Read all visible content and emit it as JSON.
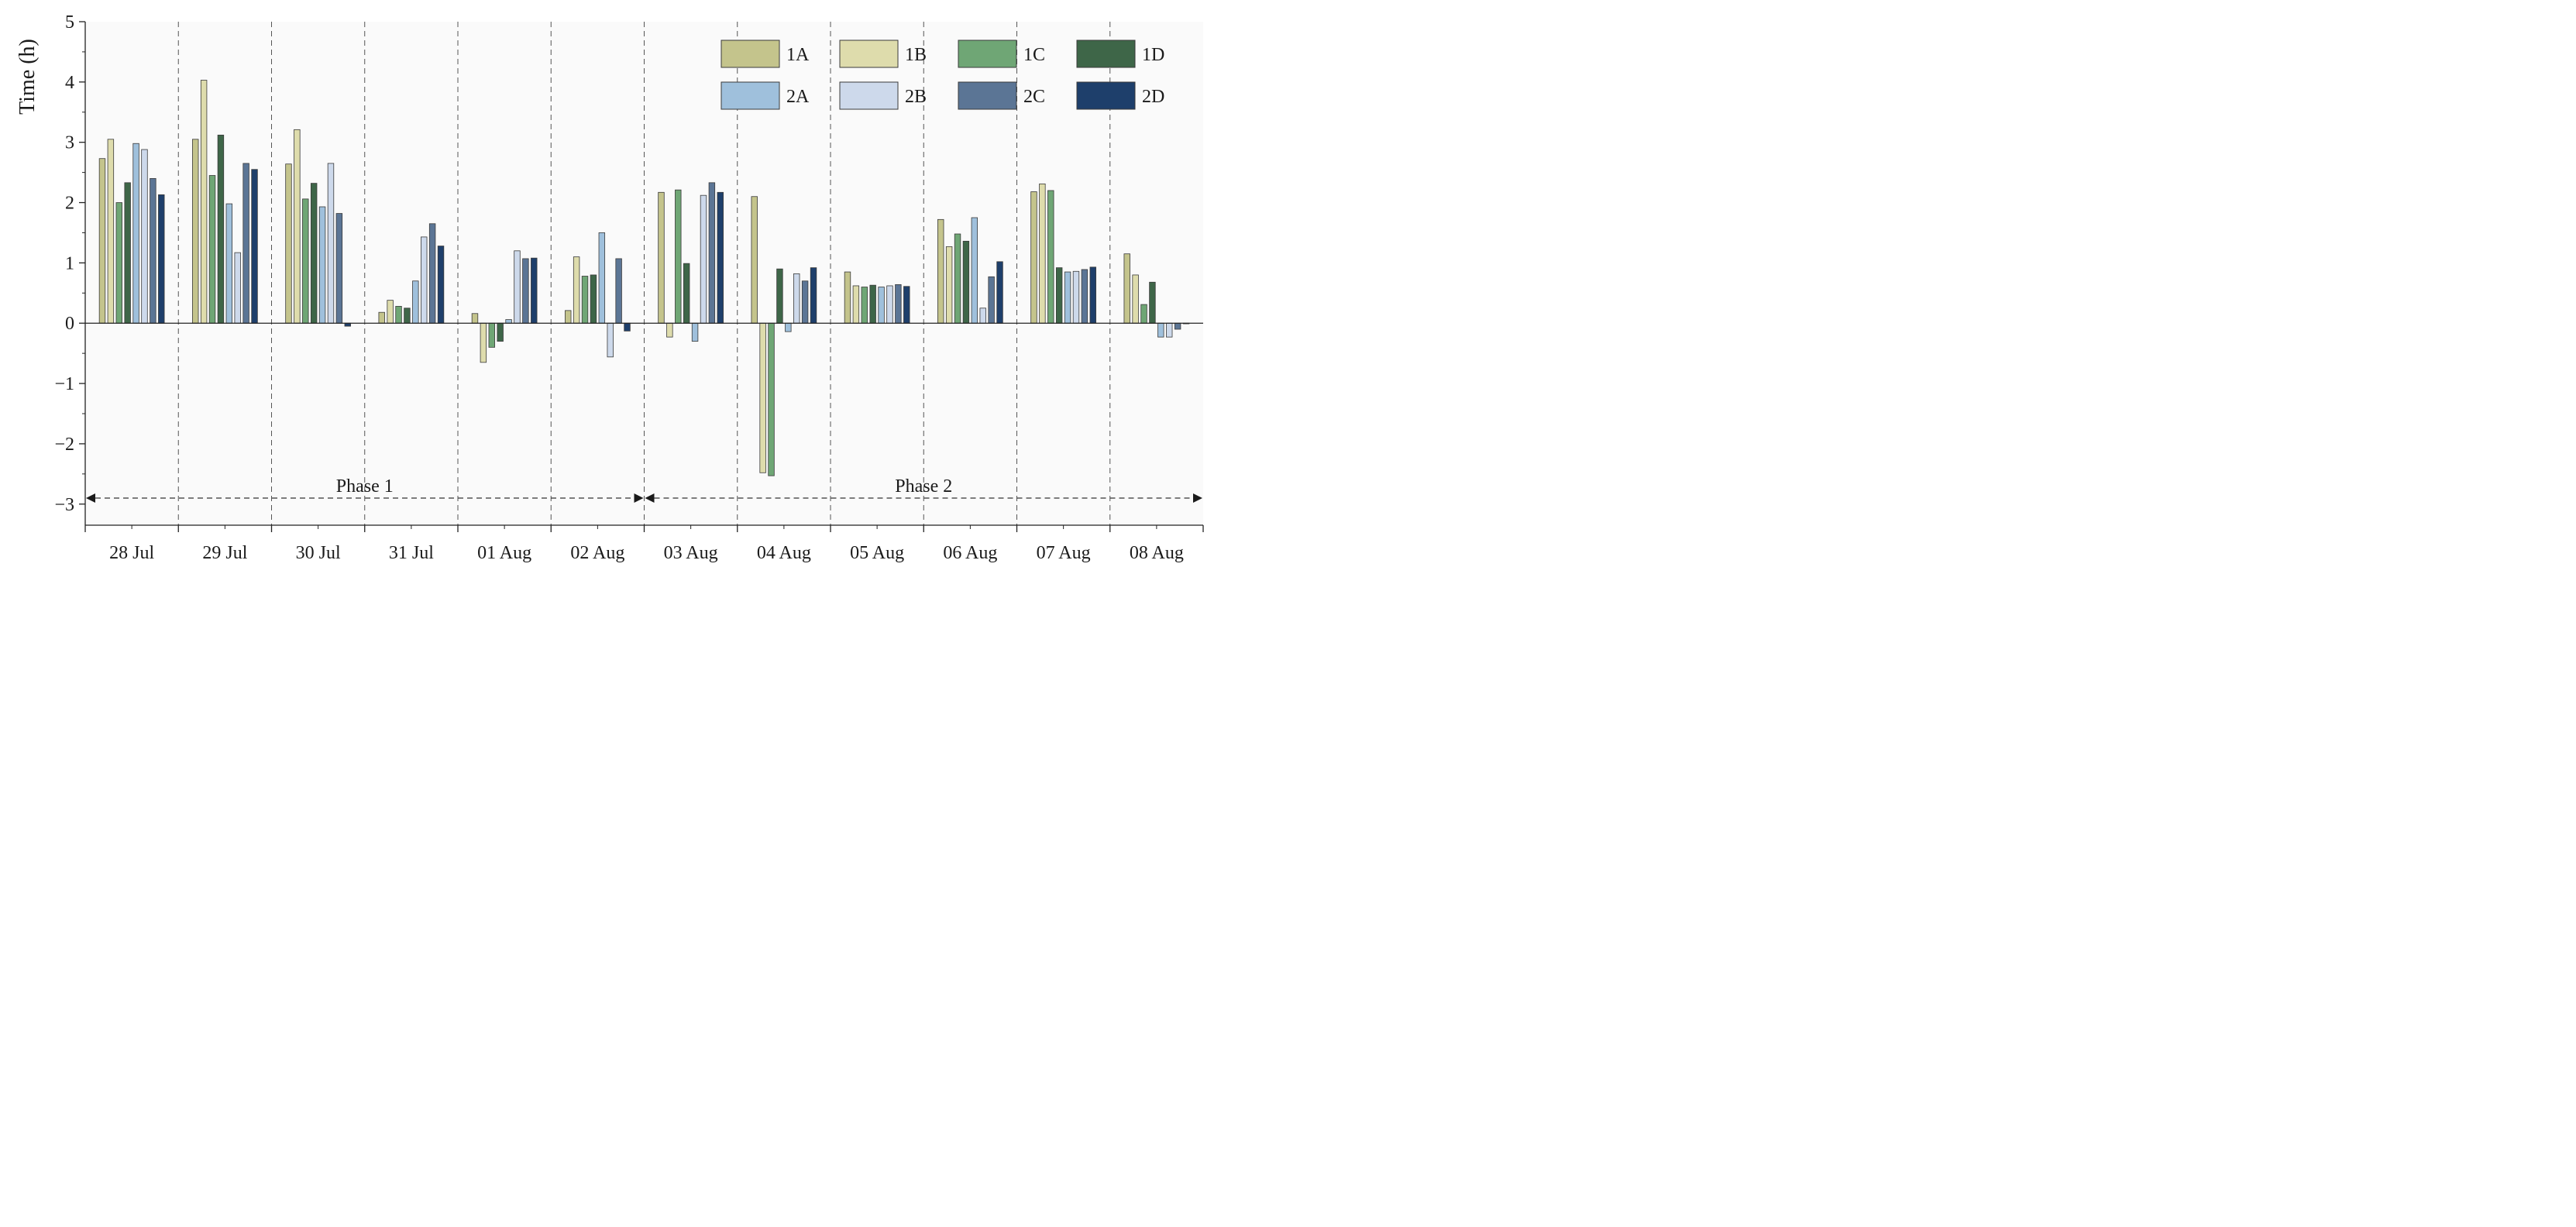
{
  "chart_data": {
    "type": "bar",
    "title": "",
    "xlabel": "",
    "ylabel": "Time (h)",
    "ylim": [
      -3.35,
      5
    ],
    "yticks": [
      -3,
      -2,
      -1,
      0,
      1,
      2,
      3,
      4,
      5
    ],
    "ytick_labels": [
      "−3",
      "−2",
      "−1",
      "0",
      "1",
      "2",
      "3",
      "4",
      "5"
    ],
    "grid": false,
    "legend_position": "top-right",
    "categories": [
      "28 Jul",
      "29 Jul",
      "30 Jul",
      "31 Jul",
      "01 Aug",
      "02 Aug",
      "03 Aug",
      "04 Aug",
      "05 Aug",
      "06 Aug",
      "07 Aug",
      "08 Aug"
    ],
    "series": [
      {
        "name": "1A",
        "color": "#c4c48c",
        "values": [
          2.73,
          3.05,
          2.64,
          0.18,
          0.16,
          0.21,
          2.17,
          2.1,
          0.85,
          1.72,
          2.18,
          1.15
        ]
      },
      {
        "name": "1B",
        "color": "#dedcac",
        "values": [
          3.05,
          4.03,
          3.21,
          0.38,
          -0.65,
          1.1,
          -0.23,
          -2.48,
          0.62,
          1.27,
          2.31,
          0.8
        ]
      },
      {
        "name": "1C",
        "color": "#6fa675",
        "values": [
          2.0,
          2.45,
          2.06,
          0.28,
          -0.4,
          0.78,
          2.21,
          -2.53,
          0.6,
          1.48,
          2.2,
          0.31
        ]
      },
      {
        "name": "1D",
        "color": "#3e6648",
        "values": [
          2.33,
          3.12,
          2.32,
          0.25,
          -0.3,
          0.8,
          0.99,
          0.9,
          0.63,
          1.36,
          0.92,
          0.68
        ]
      },
      {
        "name": "2A",
        "color": "#9fc0dc",
        "values": [
          2.98,
          1.98,
          1.93,
          0.7,
          0.06,
          1.5,
          -0.3,
          -0.14,
          0.6,
          1.75,
          0.85,
          -0.23
        ]
      },
      {
        "name": "2B",
        "color": "#cdd9eb",
        "values": [
          2.88,
          1.17,
          2.65,
          1.43,
          1.2,
          -0.56,
          2.12,
          0.82,
          0.62,
          0.25,
          0.86,
          -0.23
        ]
      },
      {
        "name": "2C",
        "color": "#5b7595",
        "values": [
          2.4,
          2.65,
          1.82,
          1.65,
          1.07,
          1.07,
          2.33,
          0.7,
          0.64,
          0.77,
          0.89,
          -0.1
        ]
      },
      {
        "name": "2D",
        "color": "#1e3f6b",
        "values": [
          2.13,
          2.55,
          -0.05,
          1.28,
          1.08,
          -0.13,
          2.17,
          0.92,
          0.61,
          1.02,
          0.93,
          -0.01
        ]
      }
    ],
    "annotations": [
      {
        "text": "Phase 1",
        "from_category": "28 Jul",
        "to_category": "02 Aug",
        "y": -2.9
      },
      {
        "text": "Phase 2",
        "from_category": "03 Aug",
        "to_category": "08 Aug",
        "y": -2.9
      }
    ]
  }
}
